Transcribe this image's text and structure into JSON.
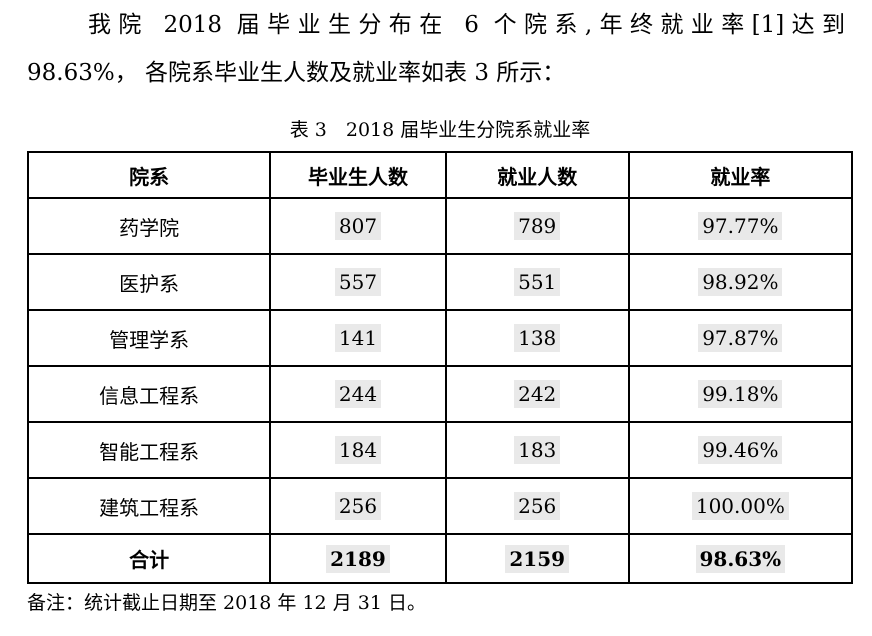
{
  "page": {
    "paragraph_line1": "我院 2018 届毕业生分布在 6 个院系,年终就业率[1]达到",
    "paragraph_line2": "98.63%， 各院系毕业生人数及就业率如表 3 所示：",
    "table_caption": "表 3　2018 届毕业生分院系就业率",
    "note": "备注：统计截止日期至 2018 年 12 月 31 日。"
  },
  "table": {
    "headers": [
      "院系",
      "毕业生人数",
      "就业人数",
      "就业率"
    ],
    "rows": [
      {
        "department": "药学院",
        "graduates": "807",
        "employed": "789",
        "rate": "97.77%"
      },
      {
        "department": "医护系",
        "graduates": "557",
        "employed": "551",
        "rate": "98.92%"
      },
      {
        "department": "管理学系",
        "graduates": "141",
        "employed": "138",
        "rate": "97.87%"
      },
      {
        "department": "信息工程系",
        "graduates": "244",
        "employed": "242",
        "rate": "99.18%"
      },
      {
        "department": "智能工程系",
        "graduates": "184",
        "employed": "183",
        "rate": "99.46%"
      },
      {
        "department": "建筑工程系",
        "graduates": "256",
        "employed": "256",
        "rate": "100.00%"
      }
    ],
    "total": {
      "department": "合计",
      "graduates": "2189",
      "employed": "2159",
      "rate": "98.63%"
    }
  },
  "colors": {
    "background": "#ffffff",
    "text": "#000000",
    "border": "#000000",
    "number_highlight": "#e9e9e9"
  }
}
